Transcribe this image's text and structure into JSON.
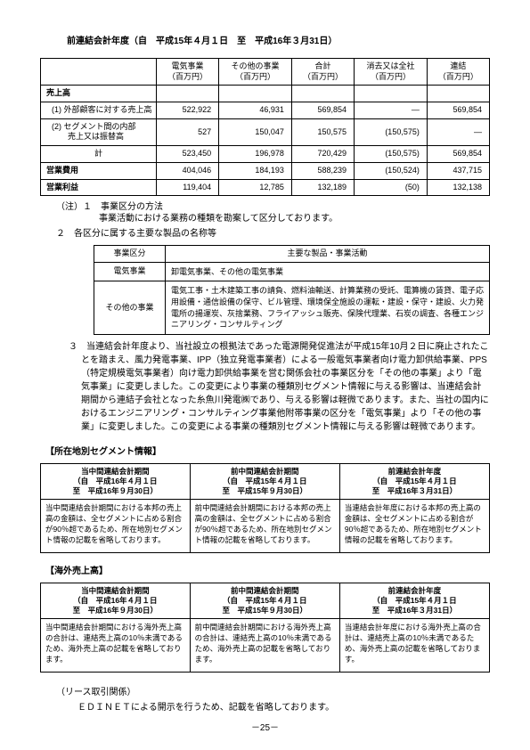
{
  "page_title": "前連結会計年度（自　平成15年４月１日　至　平成16年３月31日）",
  "t1": {
    "headers": [
      "",
      "電気事業\n（百万円）",
      "その他の事業\n（百万円）",
      "合計\n（百万円）",
      "消去又は全社\n（百万円）",
      "連結\n（百万円）"
    ],
    "rows": [
      {
        "label": "売上高",
        "cells": [
          "",
          "",
          "",
          "",
          ""
        ],
        "type": "head"
      },
      {
        "label": "(1) 外部顧客に対する売上高",
        "cells": [
          "522,922",
          "46,931",
          "569,854",
          "—",
          "569,854"
        ],
        "type": "sub"
      },
      {
        "label": "(2) セグメント間の内部\n　　売上又は振替高",
        "cells": [
          "527",
          "150,047",
          "150,575",
          "(150,575)",
          "—"
        ],
        "type": "sub"
      },
      {
        "label": "計",
        "cells": [
          "523,450",
          "196,978",
          "720,429",
          "(150,575)",
          "569,854"
        ],
        "type": "center"
      },
      {
        "label": "営業費用",
        "cells": [
          "404,046",
          "184,193",
          "588,239",
          "(150,524)",
          "437,715"
        ],
        "type": "head"
      },
      {
        "label": "営業利益",
        "cells": [
          "119,404",
          "12,785",
          "132,189",
          "(50)",
          "132,138"
        ],
        "type": "head"
      }
    ]
  },
  "notes": {
    "n1": "（注）１　事業区分の方法",
    "n1b": "事業活動における業務の種類を勘案して区分しております。",
    "n2": "２　各区分に属する主要な製品の名称等"
  },
  "t2": {
    "h1": "事業区分",
    "h2": "主要な製品・事業活動",
    "rows": [
      {
        "lab": "電気事業",
        "desc": "卸電気事業、その他の電気事業"
      },
      {
        "lab": "その他の事業",
        "desc": "電気工事・土木建築工事の請負、燃料油輸送、計算業務の受託、電算機の賃貸、電子応用設備・通信設備の保守、ビル管理、環境保全施設の運転・建設・保守・建設、火力発電所の揚運炭、灰捨業務、フライアッシュ販売、保険代理業、石炭の調査、各種エンジニアリング・コンサルティング"
      }
    ]
  },
  "note3": "３　当連結会計年度より、当社設立の根拠法であった電源開発促進法が平成15年10月２日に廃止されたことを踏まえ、風力発電事業、IPP（独立発電事業者）による一般電気事業者向け電力卸供給事業、PPS（特定規模電気事業者）向け電力卸供給事業を営む関係会社の事業区分を「その他の事業」より「電気事業」に変更しました。この変更により事業の種類別セグメント情報に与える影響は、当連結会計期間から連結子会社となった糸魚川発電㈱であり、与える影響は軽微であります。また、当社の国内におけるエンジニアリング・コンサルティング事業他附帯事業の区分を「電気事業」より「その他の事業」に変更しました。この変更による事業の種類別セグメント情報に与える影響は軽微であります。",
  "sec_loc": "【所在地別セグメント情報】",
  "t3_loc": {
    "cols": [
      {
        "h": "当中間連結会計期間\n（自　平成16年４月１日\n至　平成16年９月30日）",
        "b": "当中間連結会計期間における本邦の売上高の金額は、全セグメントに占める割合が90％超であるため、所在地別セグメント情報の記載を省略しております。"
      },
      {
        "h": "前中間連結会計期間\n（自　平成15年４月１日\n至　平成15年９月30日）",
        "b": "前中間連結会計期間における本邦の売上高の金額は、全セグメントに占める割合が90％超であるため、所在地別セグメント情報の記載を省略しております。"
      },
      {
        "h": "前連結会計年度\n（自　平成15年４月１日\n至　平成16年３月31日）",
        "b": "当連結会計年度における本邦の売上高の金額は、全セグメントに占める割合が90％超であるため、所在地別セグメント情報の記載を省略しております。"
      }
    ]
  },
  "sec_ov": "【海外売上高】",
  "t3_ov": {
    "cols": [
      {
        "h": "当中間連結会計期間\n（自　平成16年４月１日\n至　平成16年９月30日）",
        "b": "当中間連結会計期間における海外売上高の合計は、連結売上高の10％未満であるため、海外売上高の記載を省略しております。"
      },
      {
        "h": "前中間連結会計期間\n（自　平成15年４月１日\n至　平成15年９月30日）",
        "b": "前中間連結会計期間における海外売上高の合計は、連結売上高の10％未満であるため、海外売上高の記載を省略しております。"
      },
      {
        "h": "前連結会計年度\n（自　平成15年４月１日\n至　平成16年３月31日）",
        "b": "当連結会計年度における海外売上高の合計は、連結売上高の10％未満であるため、海外売上高の記載を省略しております。"
      }
    ]
  },
  "lease": {
    "h": "（リース取引関係）",
    "b": "ＥＤＩＮＥＴによる開示を行うため、記載を省略しております。"
  },
  "pagenum": "－25－"
}
